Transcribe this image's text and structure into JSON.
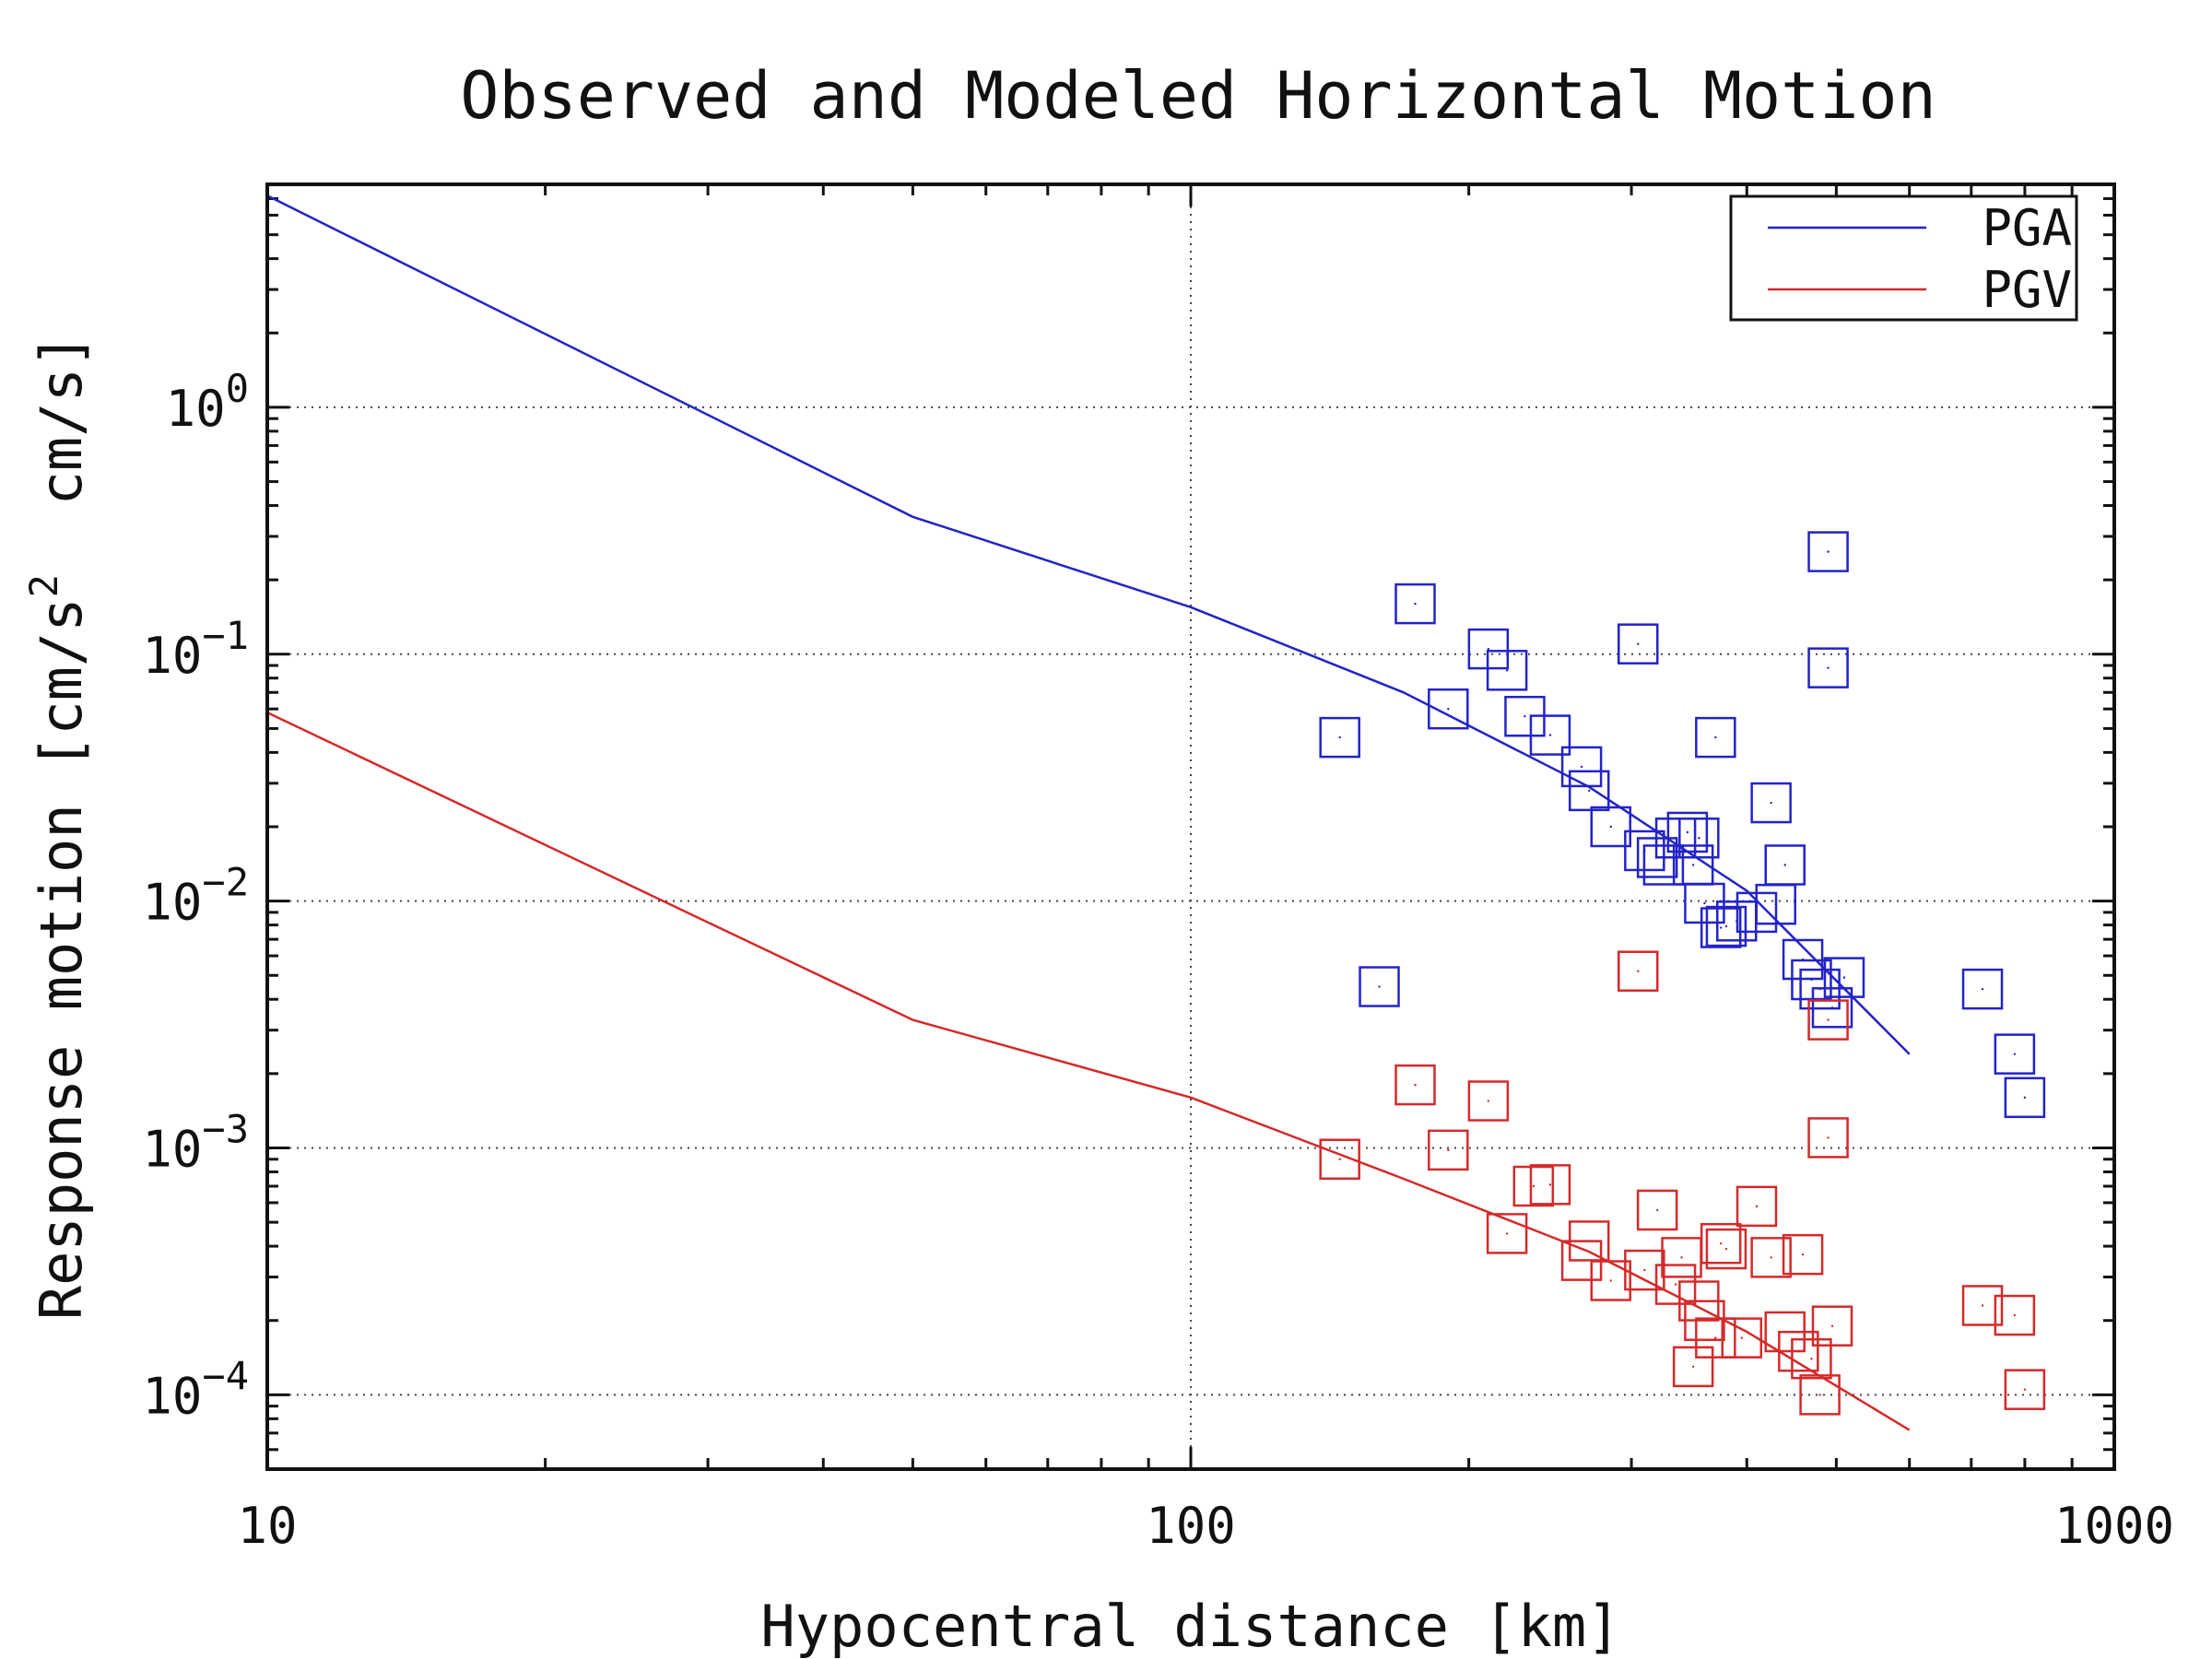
{
  "chart_data": {
    "type": "scatter",
    "title": "Observed and Modeled Horizontal Motion",
    "xlabel": "Hypocentral distance [km]",
    "ylabel": "Response motion [cm/s² cm/s]",
    "ylabel_parts": {
      "before": "Response motion [cm/s",
      "sup": "2",
      "after": "  cm/s]"
    },
    "x_scale": "log",
    "y_scale": "log",
    "xlim": [
      10,
      1000
    ],
    "ylim": [
      5e-05,
      8
    ],
    "grid": true,
    "legend_position": "top-right",
    "x_ticks": [
      {
        "value": 10,
        "label": "10"
      },
      {
        "value": 100,
        "label": "100"
      },
      {
        "value": 1000,
        "label": "1000"
      }
    ],
    "y_ticks": [
      {
        "value": 1,
        "base": "10",
        "exp": "0"
      },
      {
        "value": 0.1,
        "base": "10",
        "exp": "−1"
      },
      {
        "value": 0.01,
        "base": "10",
        "exp": "−2"
      },
      {
        "value": 0.001,
        "base": "10",
        "exp": "−3"
      },
      {
        "value": 0.0001,
        "base": "10",
        "exp": "−4"
      }
    ],
    "series": [
      {
        "name": "PGA",
        "color": "#2323c8",
        "model": {
          "x": [
            10,
            50,
            100,
            170,
            270,
            400,
            600
          ],
          "y": [
            7.2,
            0.36,
            0.155,
            0.07,
            0.029,
            0.011,
            0.0024
          ]
        },
        "observed": {
          "x": [
            145,
            175,
            190,
            210,
            220,
            230,
            245,
            265,
            270,
            285,
            305,
            310,
            320,
            325,
            335,
            345,
            350,
            355,
            360,
            370,
            375,
            380,
            390,
            410,
            425,
            430,
            440,
            460,
            470,
            480,
            490,
            490,
            495,
            510,
            720,
            780,
            800,
            160
          ],
          "y": [
            0.046,
            0.16,
            0.06,
            0.105,
            0.086,
            0.056,
            0.047,
            0.035,
            0.028,
            0.02,
            0.11,
            0.016,
            0.015,
            0.014,
            0.018,
            0.019,
            0.014,
            0.018,
            0.0098,
            0.046,
            0.0078,
            0.0079,
            0.0083,
            0.009,
            0.025,
            0.0097,
            0.014,
            0.0058,
            0.0048,
            0.0044,
            0.26,
            0.088,
            0.0037,
            0.0049,
            0.0044,
            0.0024,
            0.0016,
            0.0045
          ]
        }
      },
      {
        "name": "PGV",
        "color": "#d42a2a",
        "model": {
          "x": [
            10,
            50,
            100,
            170,
            270,
            400,
            600
          ],
          "y": [
            0.058,
            0.0033,
            0.0016,
            0.00075,
            0.00038,
            0.00018,
            7.2e-05
          ]
        },
        "observed": {
          "x": [
            145,
            175,
            190,
            210,
            220,
            235,
            245,
            265,
            270,
            285,
            305,
            310,
            320,
            335,
            340,
            350,
            355,
            360,
            370,
            375,
            380,
            395,
            410,
            425,
            440,
            455,
            460,
            470,
            480,
            490,
            490,
            495,
            720,
            780,
            800
          ],
          "y": [
            0.0009,
            0.0018,
            0.00098,
            0.00155,
            0.00045,
            0.0007,
            0.00071,
            0.00035,
            0.00042,
            0.00029,
            0.0052,
            0.00032,
            0.00056,
            0.00028,
            0.00036,
            0.00013,
            0.00024,
            0.0002,
            0.00017,
            0.00041,
            0.00039,
            0.00017,
            0.00058,
            0.00036,
            0.00018,
            0.00015,
            0.00037,
            0.00014,
            0.0001,
            0.0033,
            0.0011,
            0.00019,
            0.00023,
            0.00021,
            0.000105
          ]
        }
      }
    ]
  }
}
